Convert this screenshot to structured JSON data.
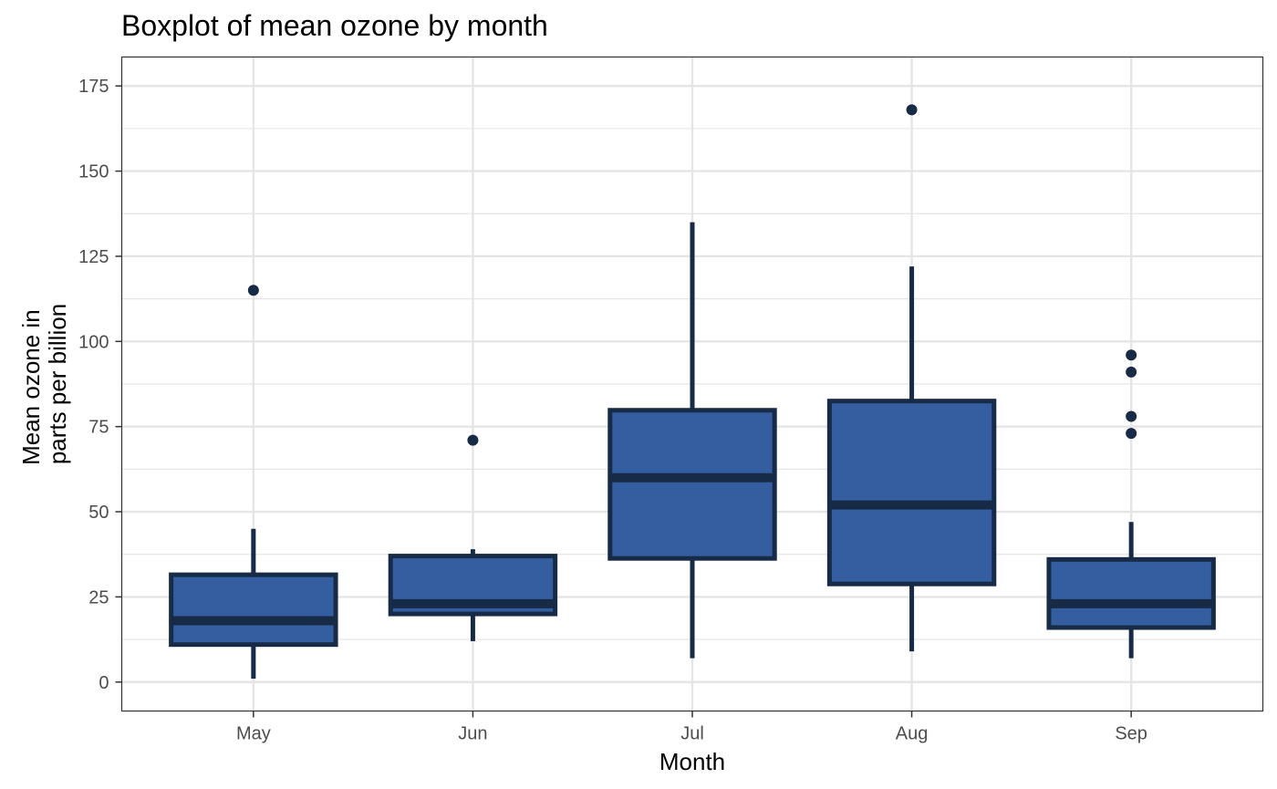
{
  "chart_data": {
    "type": "boxplot",
    "title": "Boxplot of mean ozone by month",
    "xlabel": "Month",
    "ylabel_lines": [
      "Mean ozone in",
      "parts per billion"
    ],
    "categories": [
      "May",
      "Jun",
      "Jul",
      "Aug",
      "Sep"
    ],
    "ylim": [
      -8.5,
      183.5
    ],
    "yticks": [
      0,
      25,
      50,
      75,
      100,
      125,
      150,
      175
    ],
    "grid": true,
    "legend": "none",
    "colors": {
      "fill": "#355EA0",
      "stroke": "#172A46",
      "grid": "#E5E5E5",
      "panel_border": "#333333"
    },
    "boxes": [
      {
        "category": "May",
        "min": 1,
        "q1": 11,
        "median": 18,
        "q3": 31.5,
        "max": 45,
        "outliers": [
          115
        ]
      },
      {
        "category": "Jun",
        "min": 12,
        "q1": 20,
        "median": 23,
        "q3": 37,
        "max": 39,
        "outliers": [
          71
        ]
      },
      {
        "category": "Jul",
        "min": 7,
        "q1": 36.3,
        "median": 60,
        "q3": 79.8,
        "max": 135,
        "outliers": []
      },
      {
        "category": "Aug",
        "min": 9,
        "q1": 28.8,
        "median": 52,
        "q3": 82.5,
        "max": 122,
        "outliers": [
          168
        ]
      },
      {
        "category": "Sep",
        "min": 7,
        "q1": 16,
        "median": 23,
        "q3": 36,
        "max": 47,
        "outliers": [
          73,
          78,
          91,
          96
        ]
      }
    ]
  }
}
